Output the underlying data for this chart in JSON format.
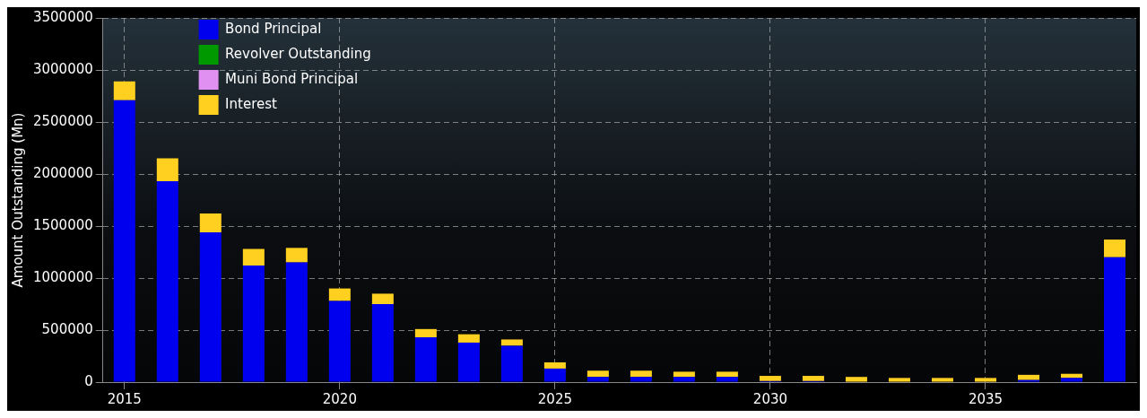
{
  "chart_data": {
    "type": "bar",
    "stacked": true,
    "ylabel": "Amount Outstanding (Mn)",
    "categories": [
      "2015",
      null,
      null,
      null,
      null,
      "2020",
      null,
      null,
      null,
      null,
      "2025",
      null,
      null,
      null,
      null,
      "2030",
      null,
      null,
      null,
      null,
      "2035",
      null,
      null,
      null
    ],
    "series": [
      {
        "name": "Bond Principal",
        "color": "#0000ee",
        "values": [
          2710000,
          1930000,
          1440000,
          1120000,
          1150000,
          780000,
          750000,
          430000,
          380000,
          350000,
          130000,
          50000,
          50000,
          50000,
          50000,
          10000,
          10000,
          0,
          0,
          0,
          0,
          20000,
          40000,
          1200000
        ]
      },
      {
        "name": "Revolver Outstanding",
        "color": "#009900",
        "values": [
          0,
          0,
          0,
          0,
          0,
          0,
          0,
          0,
          0,
          0,
          0,
          0,
          0,
          0,
          0,
          0,
          0,
          0,
          0,
          0,
          0,
          0,
          0,
          0
        ]
      },
      {
        "name": "Muni Bond Principal",
        "color": "#e090f0",
        "values": [
          0,
          0,
          0,
          0,
          0,
          0,
          0,
          0,
          0,
          0,
          0,
          0,
          0,
          0,
          0,
          0,
          0,
          0,
          0,
          0,
          0,
          0,
          0,
          0
        ]
      },
      {
        "name": "Interest",
        "color": "#ffd020",
        "values": [
          180000,
          220000,
          180000,
          160000,
          140000,
          120000,
          100000,
          80000,
          80000,
          60000,
          60000,
          60000,
          60000,
          50000,
          50000,
          50000,
          50000,
          50000,
          40000,
          40000,
          40000,
          50000,
          40000,
          170000
        ]
      }
    ],
    "ylim": [
      0,
      3500000
    ],
    "yticks": [
      0,
      500000,
      1000000,
      1500000,
      2000000,
      2500000,
      3000000,
      3500000
    ],
    "grid": true,
    "legend": "top left"
  }
}
